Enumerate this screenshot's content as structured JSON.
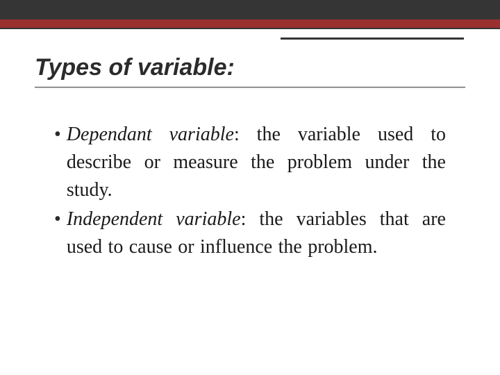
{
  "colors": {
    "topbar": "#353535",
    "redbar": "#9a2f2f",
    "accent": "#353535",
    "text": "#1a1a1a",
    "background": "#ffffff"
  },
  "title": "Types of variable:",
  "title_fontsize": 34,
  "body_fontsize": 28,
  "bullets": [
    {
      "term": "Dependant variable",
      "definition": ": the variable used to describe or measure the problem under the study."
    },
    {
      "term": "Independent variable",
      "definition": ": the variables that are used to cause or influence the problem."
    }
  ]
}
